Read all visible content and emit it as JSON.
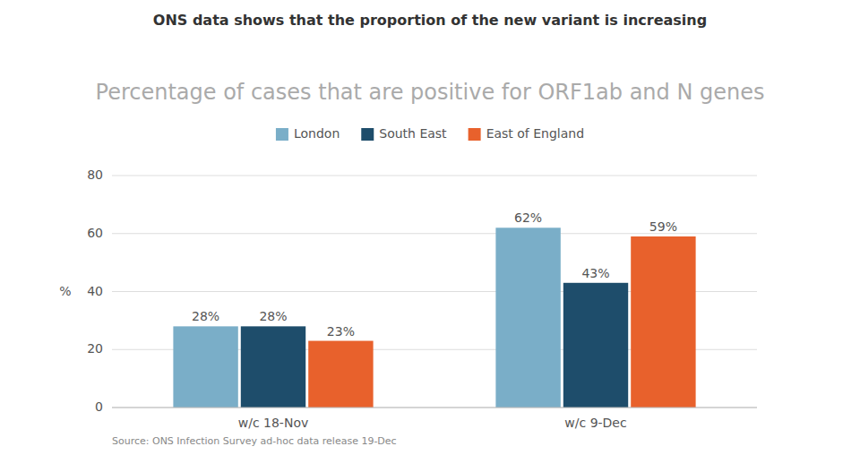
{
  "chart_data": {
    "type": "bar",
    "title": "ONS data shows that the proportion of the new variant is increasing",
    "subtitle": "Percentage of cases that are positive for ORF1ab and N genes",
    "source": "Source: ONS Infection Survey ad-hoc data release 19-Dec",
    "y_label": "%",
    "categories": [
      "w/c 18-Nov",
      "w/c 9-Dec"
    ],
    "series": [
      {
        "name": "London",
        "color": "#7aaec8",
        "values": [
          28,
          62
        ],
        "value_labels": [
          "28%",
          "62%"
        ]
      },
      {
        "name": "South East",
        "color": "#1e4d6b",
        "values": [
          28,
          43
        ],
        "value_labels": [
          "28%",
          "43%"
        ]
      },
      {
        "name": "East of England",
        "color": "#e8612c",
        "values": [
          23,
          59
        ],
        "value_labels": [
          "23%",
          "59%"
        ]
      }
    ],
    "ylim": [
      0,
      80
    ],
    "yticks": [
      0,
      20,
      40,
      60,
      80
    ],
    "grid": true,
    "legend": "top",
    "data_labels": true
  }
}
